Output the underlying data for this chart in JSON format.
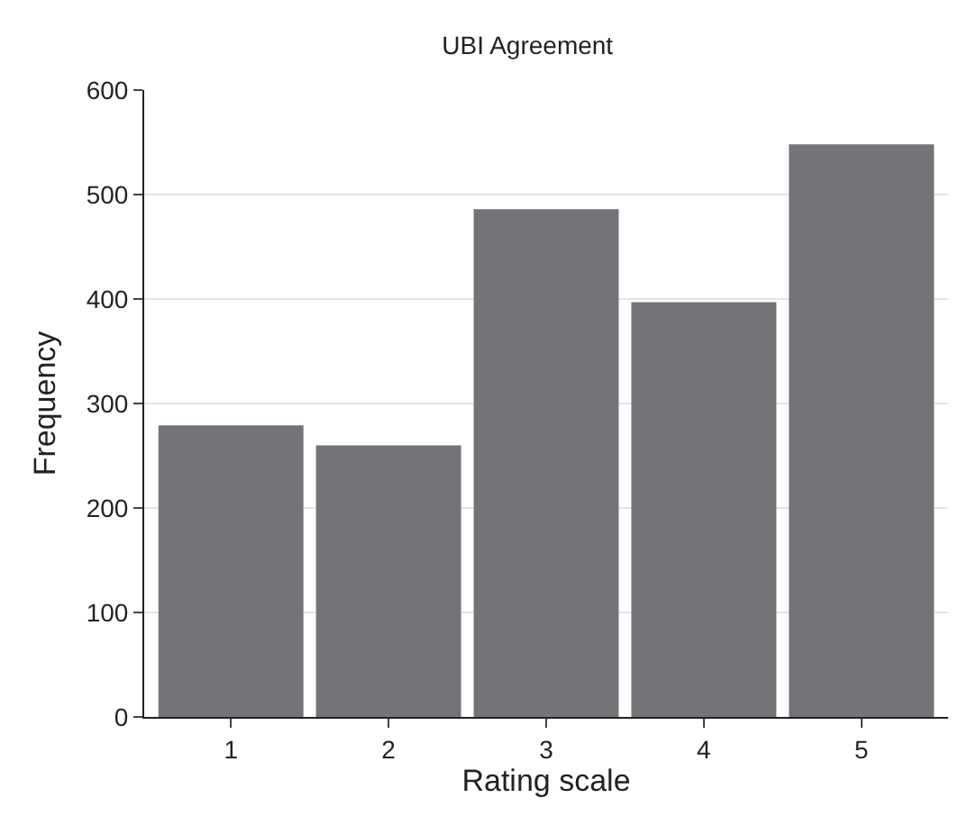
{
  "chart_data": {
    "type": "bar",
    "title": "UBI Agreement",
    "xlabel": "Rating scale",
    "ylabel": "Frequency",
    "categories": [
      "1",
      "2",
      "3",
      "4",
      "5"
    ],
    "values": [
      279,
      260,
      486,
      397,
      548
    ],
    "color": "#747378",
    "ylim": [
      0,
      600
    ],
    "yticks": [
      0,
      100,
      200,
      300,
      400,
      500,
      600
    ],
    "grid": "y",
    "legend": false
  }
}
